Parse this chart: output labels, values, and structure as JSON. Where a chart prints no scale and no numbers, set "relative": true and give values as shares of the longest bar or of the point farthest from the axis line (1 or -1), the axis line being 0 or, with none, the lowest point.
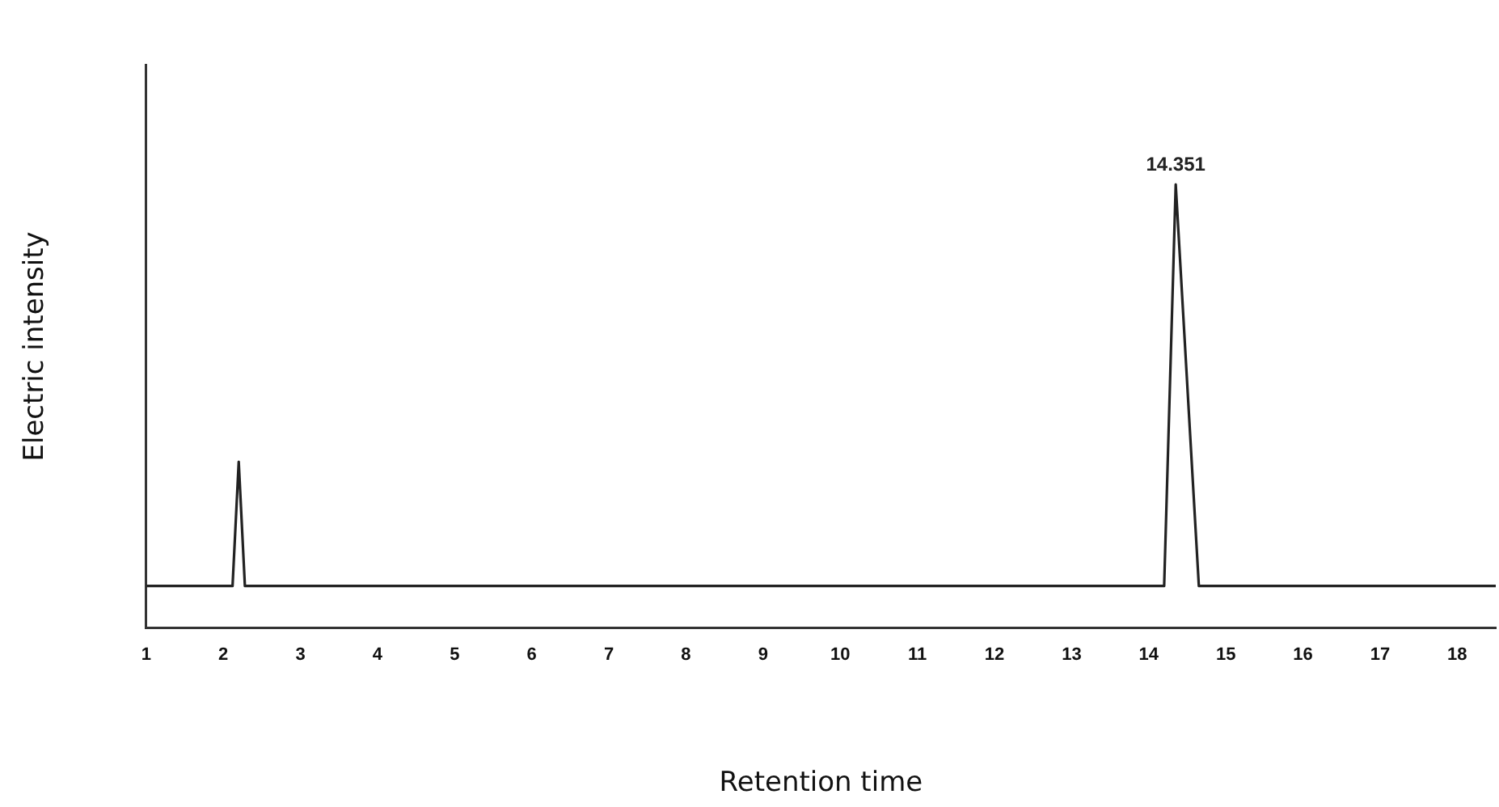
{
  "chart_data": {
    "type": "line",
    "relative": true,
    "xlabel": "Retention time",
    "ylabel": "Electric intensity",
    "xlim": [
      1,
      18.5
    ],
    "xticks": [
      1,
      2,
      3,
      4,
      5,
      6,
      7,
      8,
      9,
      10,
      11,
      12,
      13,
      14,
      15,
      16,
      17,
      18
    ],
    "series": [
      {
        "color": "#222222",
        "x": [
          1,
          2.12,
          2.2,
          2.28,
          14.2,
          14.35,
          14.65,
          18.5
        ],
        "values": [
          0.095,
          0.095,
          0.375,
          0.095,
          0.095,
          1,
          0.095,
          0.095
        ]
      }
    ],
    "annotations": [
      {
        "text": "14.351",
        "x": 14.35,
        "y": 1
      }
    ],
    "grid": false,
    "legend": false,
    "marker": "none",
    "line_style": "solid"
  }
}
